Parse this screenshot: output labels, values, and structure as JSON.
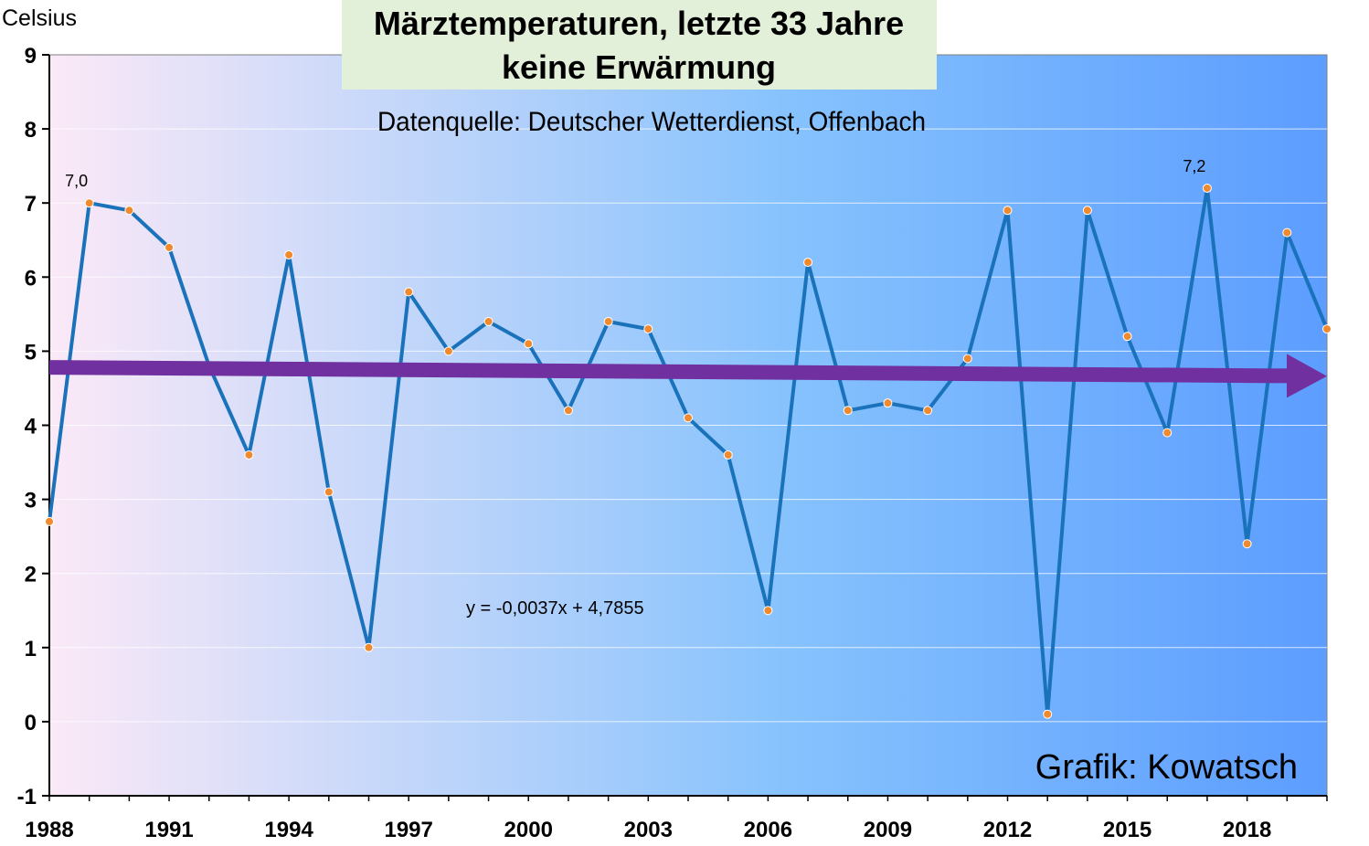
{
  "chart_data": {
    "type": "line",
    "title_line1": "Märztemperaturen, letzte 33 Jahre",
    "title_line2": "keine Erwärmung",
    "subtitle": "Datenquelle: Deutscher Wetterdienst, Offenbach",
    "ylabel": "Celsius",
    "ylim": [
      -1,
      9
    ],
    "yticks": [
      "-1",
      "0",
      "1",
      "2",
      "3",
      "4",
      "5",
      "6",
      "7",
      "8",
      "9"
    ],
    "xticks": [
      "1988",
      "1991",
      "1994",
      "1997",
      "2000",
      "2003",
      "2006",
      "2009",
      "2012",
      "2015",
      "2018"
    ],
    "x": [
      1988,
      1989,
      1990,
      1991,
      1992,
      1993,
      1994,
      1995,
      1996,
      1997,
      1998,
      1999,
      2000,
      2001,
      2002,
      2003,
      2004,
      2005,
      2006,
      2007,
      2008,
      2009,
      2010,
      2011,
      2012,
      2013,
      2014,
      2015,
      2016,
      2017,
      2018,
      2019,
      2020
    ],
    "values": [
      2.7,
      7.0,
      6.9,
      6.4,
      4.8,
      3.6,
      6.3,
      3.1,
      1.0,
      5.8,
      5.0,
      5.4,
      5.1,
      4.2,
      5.4,
      5.3,
      4.1,
      3.6,
      1.5,
      6.2,
      4.2,
      4.3,
      4.2,
      4.9,
      6.9,
      0.1,
      6.9,
      5.2,
      3.9,
      7.2,
      2.4,
      6.6,
      5.3
    ],
    "data_labels": [
      {
        "x": 1989,
        "text": "7,0"
      },
      {
        "x": 2017,
        "text": "7,2"
      }
    ],
    "trend_equation": "y = -0,0037x + 4,7855",
    "trend": {
      "slope": -0.0037,
      "intercept": 4.7855
    },
    "credit": "Grafik: Kowatsch",
    "grid": true,
    "colors": {
      "line": "#1a72bb",
      "marker": "#f08a2e",
      "trend_arrow": "#7030a0",
      "title_box": "#e2efd9",
      "background_left": "#fbe9f7",
      "background_right": "#5c9dff"
    }
  }
}
